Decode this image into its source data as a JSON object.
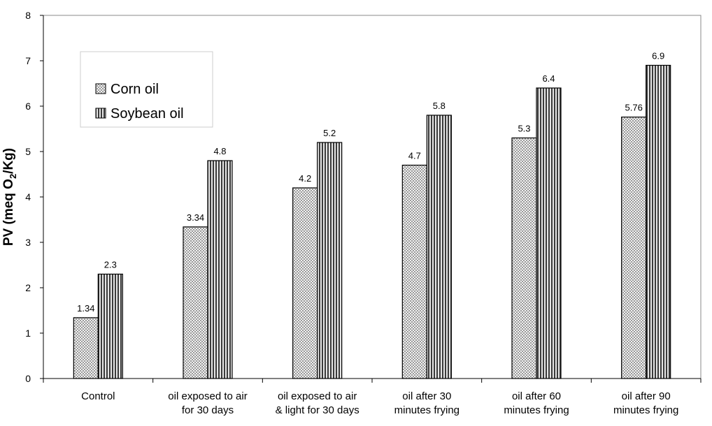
{
  "chart_data": {
    "type": "bar",
    "categories": [
      [
        "Control"
      ],
      [
        "oil exposed to air",
        "for 30 days"
      ],
      [
        "oil exposed to air",
        "& light for 30 days"
      ],
      [
        "oil after 30",
        "minutes frying"
      ],
      [
        "oil after 60",
        "minutes frying"
      ],
      [
        "oil after 90",
        "minutes frying"
      ]
    ],
    "series": [
      {
        "name": "Corn oil",
        "values": [
          1.34,
          3.34,
          4.2,
          4.7,
          5.3,
          5.76
        ],
        "labels": [
          "1.34",
          "3.34",
          "4.2",
          "4.7",
          "5.3",
          "5.76"
        ],
        "pattern": "checkered",
        "color": "#cfcfcf"
      },
      {
        "name": "Soybean oil",
        "values": [
          2.3,
          4.8,
          5.2,
          5.8,
          6.4,
          6.9
        ],
        "labels": [
          "2.3",
          "4.8",
          "5.2",
          "5.8",
          "6.4",
          "6.9"
        ],
        "pattern": "vertical-stripes",
        "color": "#555555"
      }
    ],
    "ylabel": {
      "main": "PV (meq O",
      "sub": "2",
      "tail": "/Kg)"
    },
    "ylim": [
      0,
      8
    ],
    "yticks": [
      "0",
      "1",
      "2",
      "3",
      "4",
      "5",
      "6",
      "7",
      "8"
    ],
    "grid": false,
    "legend_position": "top-left"
  }
}
